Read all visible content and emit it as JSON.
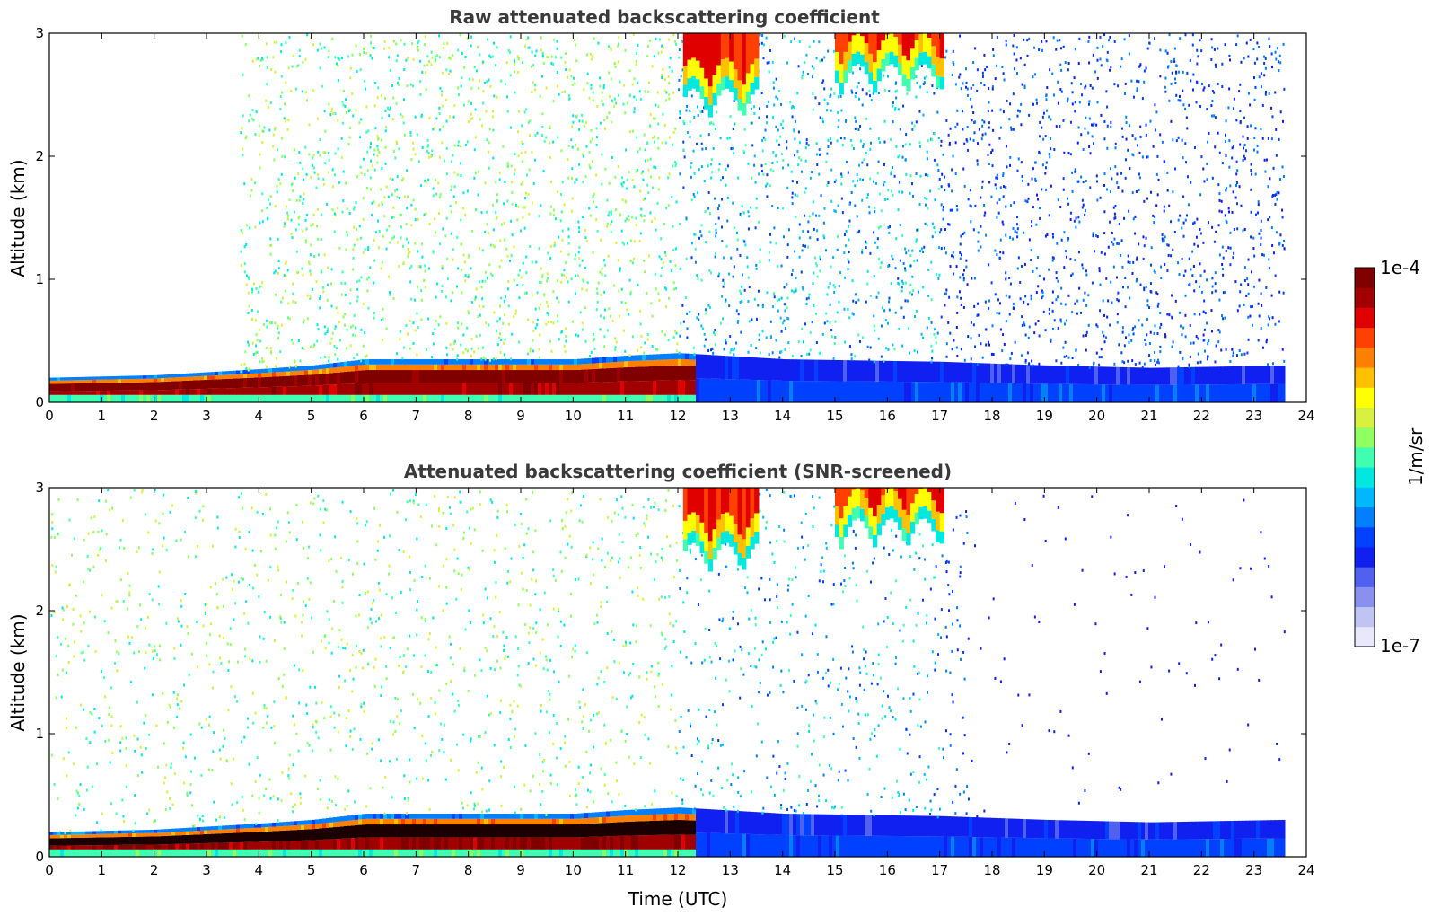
{
  "chart_data": [
    {
      "type": "heatmap",
      "title": "Raw attenuated backscattering coefficient",
      "xlabel": "",
      "ylabel": "Altitude (km)",
      "xlim": [
        0,
        24
      ],
      "ylim": [
        0,
        3
      ],
      "x_ticks": [
        "0",
        "1",
        "2",
        "3",
        "4",
        "5",
        "6",
        "7",
        "8",
        "9",
        "10",
        "11",
        "12",
        "13",
        "14",
        "15",
        "16",
        "17",
        "18",
        "19",
        "20",
        "21",
        "22",
        "23",
        "24"
      ],
      "y_ticks": [
        "0",
        "1",
        "2",
        "3"
      ],
      "data_end_time": 23.65,
      "noise_start_time": 3.6,
      "aerosol_layer_top_km": [
        [
          0,
          0.2
        ],
        [
          2,
          0.22
        ],
        [
          4,
          0.27
        ],
        [
          5,
          0.3
        ],
        [
          6,
          0.35
        ],
        [
          8,
          0.35
        ],
        [
          10,
          0.35
        ],
        [
          11,
          0.38
        ],
        [
          12,
          0.4
        ],
        [
          14,
          0.35
        ],
        [
          17,
          0.33
        ],
        [
          19,
          0.3
        ],
        [
          21,
          0.28
        ],
        [
          23.6,
          0.3
        ]
      ],
      "clouds": [
        {
          "t0": 12.1,
          "t1": 13.5,
          "base_km": 2.3
        },
        {
          "t0": 15.0,
          "t1": 17.0,
          "base_km": 2.5
        }
      ]
    },
    {
      "type": "heatmap",
      "title": "Attenuated backscattering coefficient (SNR-screened)",
      "xlabel": "Time (UTC)",
      "ylabel": "Altitude (km)",
      "xlim": [
        0,
        24
      ],
      "ylim": [
        0,
        3
      ],
      "x_ticks": [
        "0",
        "1",
        "2",
        "3",
        "4",
        "5",
        "6",
        "7",
        "8",
        "9",
        "10",
        "11",
        "12",
        "13",
        "14",
        "15",
        "16",
        "17",
        "18",
        "19",
        "20",
        "21",
        "22",
        "23",
        "24"
      ],
      "y_ticks": [
        "0",
        "1",
        "2",
        "3"
      ],
      "data_end_time": 23.65,
      "aerosol_layer_top_km": [
        [
          0,
          0.2
        ],
        [
          2,
          0.22
        ],
        [
          4,
          0.27
        ],
        [
          5,
          0.3
        ],
        [
          6,
          0.35
        ],
        [
          8,
          0.35
        ],
        [
          10,
          0.35
        ],
        [
          11,
          0.38
        ],
        [
          12,
          0.4
        ],
        [
          14,
          0.35
        ],
        [
          17,
          0.33
        ],
        [
          19,
          0.3
        ],
        [
          21,
          0.28
        ],
        [
          23.6,
          0.3
        ]
      ],
      "clouds": [
        {
          "t0": 12.1,
          "t1": 13.5,
          "base_km": 2.3
        },
        {
          "t0": 15.0,
          "t1": 17.0,
          "base_km": 2.5
        }
      ]
    }
  ],
  "colorbar": {
    "label": "1/m/sr",
    "max_label": "1e-4",
    "min_label": "1e-7",
    "colors": [
      "#e8e8fa",
      "#c0c4f2",
      "#8a90ee",
      "#5060f0",
      "#1020f0",
      "#0040ff",
      "#0080ff",
      "#00b8ff",
      "#00e8e0",
      "#40ffb0",
      "#90ff60",
      "#d8f040",
      "#ffff00",
      "#ffc000",
      "#ff8000",
      "#ff4000",
      "#e00000",
      "#a00000",
      "#800000"
    ]
  }
}
